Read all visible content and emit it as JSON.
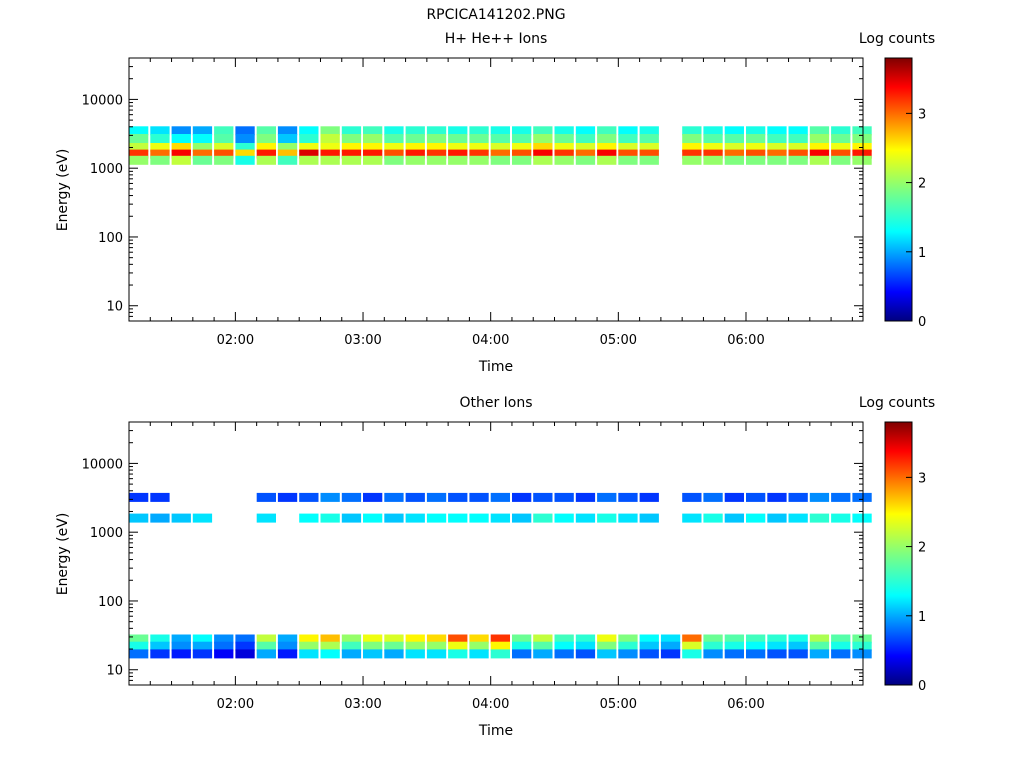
{
  "file_title": "RPCICA141202.PNG",
  "chart_data": [
    {
      "type": "heatmap",
      "title": "H+ He++ Ions",
      "xlabel": "Time",
      "ylabel": "Energy (eV)",
      "colorbar_label": "Log counts",
      "xlim": [
        "01:10",
        "06:55"
      ],
      "ylim": [
        6,
        40000
      ],
      "yscale": "log",
      "zlim": [
        0,
        3.8
      ],
      "x_ticks": [
        "02:00",
        "03:00",
        "04:00",
        "05:00",
        "06:00"
      ],
      "y_ticks": [
        "10",
        "100",
        "1000",
        "10000"
      ],
      "colorbar_ticks": [
        "0",
        "1",
        "2",
        "3"
      ],
      "colormap": [
        "#00007f",
        "#0000ff",
        "#007fff",
        "#00ffff",
        "#7fff7f",
        "#ffff00",
        "#ff7f00",
        "#ff0000",
        "#7f0000"
      ],
      "time_bins": [
        "01:10",
        "01:20",
        "01:30",
        "01:40",
        "01:50",
        "02:00",
        "02:10",
        "02:20",
        "02:30",
        "02:40",
        "02:50",
        "03:00",
        "03:10",
        "03:20",
        "03:30",
        "03:40",
        "03:50",
        "04:00",
        "04:10",
        "04:20",
        "04:30",
        "04:40",
        "04:50",
        "05:00",
        "05:10",
        "05:20",
        "05:30",
        "05:40",
        "05:50",
        "06:00",
        "06:10",
        "06:20",
        "06:30",
        "06:40",
        "06:50"
      ],
      "energy_bands": [
        {
          "energy_ev": 3500,
          "log_counts": [
            1.3,
            1.2,
            0.9,
            1.0,
            1.6,
            0.8,
            1.7,
            0.9,
            1.3,
            1.9,
            1.5,
            1.6,
            1.4,
            1.5,
            1.5,
            1.4,
            1.5,
            1.4,
            1.4,
            1.6,
            1.4,
            1.3,
            1.6,
            1.3,
            1.4,
            0,
            1.5,
            1.4,
            1.3,
            1.4,
            1.3,
            1.3,
            1.7,
            1.5,
            1.6
          ]
        },
        {
          "energy_ev": 2700,
          "log_counts": [
            1.8,
            1.5,
            1.3,
            1.3,
            1.7,
            0.9,
            1.9,
            1.1,
            1.5,
            2.2,
            1.9,
            2.0,
            1.7,
            1.8,
            1.9,
            1.8,
            1.8,
            1.7,
            1.7,
            2.0,
            1.8,
            1.6,
            1.9,
            1.6,
            1.7,
            0,
            1.9,
            1.7,
            1.7,
            1.8,
            1.6,
            1.6,
            2.0,
            1.8,
            1.9
          ]
        },
        {
          "energy_ev": 2000,
          "log_counts": [
            2.2,
            2.4,
            2.6,
            2.0,
            2.3,
            1.5,
            2.5,
            2.0,
            2.4,
            2.4,
            2.5,
            2.5,
            2.4,
            2.5,
            2.5,
            2.4,
            2.4,
            2.3,
            2.4,
            2.6,
            2.4,
            2.3,
            2.5,
            2.3,
            2.3,
            0,
            2.5,
            2.4,
            2.3,
            2.4,
            2.3,
            2.3,
            2.5,
            2.4,
            2.5
          ]
        },
        {
          "energy_ev": 1600,
          "log_counts": [
            3.2,
            3.0,
            3.4,
            3.0,
            3.1,
            2.6,
            3.3,
            2.7,
            3.5,
            3.3,
            3.3,
            3.3,
            3.1,
            3.3,
            3.2,
            3.3,
            3.2,
            3.0,
            3.1,
            3.4,
            3.2,
            3.0,
            3.4,
            3.1,
            3.1,
            0,
            3.2,
            3.2,
            3.0,
            3.1,
            3.0,
            3.1,
            3.4,
            3.1,
            3.3
          ]
        },
        {
          "energy_ev": 1300,
          "log_counts": [
            2.0,
            1.9,
            2.2,
            1.8,
            1.9,
            1.4,
            2.1,
            1.6,
            2.1,
            2.1,
            2.1,
            2.1,
            1.9,
            2.0,
            2.0,
            2.0,
            2.0,
            1.9,
            1.9,
            2.1,
            2.0,
            1.9,
            2.1,
            1.9,
            1.9,
            0,
            2.0,
            2.0,
            1.9,
            1.9,
            1.9,
            1.9,
            2.1,
            1.9,
            2.0
          ]
        }
      ]
    },
    {
      "type": "heatmap",
      "title": "Other Ions",
      "xlabel": "Time",
      "ylabel": "Energy (eV)",
      "colorbar_label": "Log counts",
      "xlim": [
        "01:10",
        "06:55"
      ],
      "ylim": [
        6,
        40000
      ],
      "yscale": "log",
      "zlim": [
        0,
        3.8
      ],
      "x_ticks": [
        "02:00",
        "03:00",
        "04:00",
        "05:00",
        "06:00"
      ],
      "y_ticks": [
        "10",
        "100",
        "1000",
        "10000"
      ],
      "colorbar_ticks": [
        "0",
        "1",
        "2",
        "3"
      ],
      "colormap": [
        "#00007f",
        "#0000ff",
        "#007fff",
        "#00ffff",
        "#7fff7f",
        "#ffff00",
        "#ff7f00",
        "#ff0000",
        "#7f0000"
      ],
      "time_bins": [
        "01:10",
        "01:20",
        "01:30",
        "01:40",
        "01:50",
        "02:00",
        "02:10",
        "02:20",
        "02:30",
        "02:40",
        "02:50",
        "03:00",
        "03:10",
        "03:20",
        "03:30",
        "03:40",
        "03:50",
        "04:00",
        "04:10",
        "04:20",
        "04:30",
        "04:40",
        "04:50",
        "05:00",
        "05:10",
        "05:20",
        "05:30",
        "05:40",
        "05:50",
        "06:00",
        "06:10",
        "06:20",
        "06:30",
        "06:40",
        "06:50"
      ],
      "energy_bands": [
        {
          "energy_ev": 3200,
          "log_counts": [
            0.6,
            0.6,
            0,
            0,
            0,
            0,
            0.7,
            0.6,
            0.7,
            0.9,
            0.8,
            0.6,
            0.8,
            0.7,
            0.8,
            0.7,
            0.7,
            0.8,
            0.6,
            0.7,
            0.7,
            0.6,
            0.8,
            0.7,
            0.6,
            0,
            0.7,
            0.8,
            0.6,
            0.7,
            0.6,
            0.7,
            0.9,
            0.8,
            0.8
          ]
        },
        {
          "energy_ev": 1600,
          "log_counts": [
            1.1,
            1.0,
            1.1,
            1.2,
            0,
            0,
            1.2,
            0,
            1.3,
            1.4,
            1.1,
            1.3,
            1.1,
            1.2,
            1.3,
            1.3,
            1.3,
            1.2,
            1.1,
            1.5,
            1.3,
            1.2,
            1.4,
            1.2,
            1.1,
            0,
            1.2,
            1.4,
            1.1,
            1.3,
            1.1,
            1.2,
            1.5,
            1.4,
            1.3
          ]
        },
        {
          "energy_ev": 28,
          "log_counts": [
            1.8,
            1.4,
            1.0,
            1.3,
            0.9,
            0.8,
            2.2,
            1.0,
            2.5,
            2.7,
            2.0,
            2.4,
            2.3,
            2.5,
            2.6,
            3.1,
            2.6,
            3.2,
            1.8,
            2.2,
            1.6,
            1.5,
            2.4,
            1.9,
            1.3,
            1.2,
            3.0,
            1.8,
            1.7,
            1.6,
            1.5,
            1.4,
            2.1,
            1.7,
            1.8
          ]
        },
        {
          "energy_ev": 22,
          "log_counts": [
            1.4,
            1.1,
            0.9,
            1.0,
            0.8,
            0.6,
            1.7,
            0.9,
            2.0,
            2.1,
            1.6,
            1.9,
            1.8,
            2.0,
            2.0,
            2.4,
            2.0,
            2.5,
            1.4,
            1.7,
            1.3,
            1.2,
            1.9,
            1.5,
            1.1,
            1.0,
            2.3,
            1.5,
            1.4,
            1.3,
            1.2,
            1.1,
            1.7,
            1.4,
            1.5
          ]
        },
        {
          "energy_ev": 17,
          "log_counts": [
            0.8,
            0.6,
            0.5,
            0.6,
            0.4,
            0.3,
            1.0,
            0.5,
            1.2,
            1.3,
            1.0,
            1.1,
            1.0,
            1.2,
            1.2,
            1.4,
            1.2,
            1.5,
            0.8,
            1.0,
            0.8,
            0.7,
            1.1,
            0.9,
            0.7,
            0.6,
            1.4,
            0.9,
            0.8,
            0.8,
            0.7,
            0.7,
            1.0,
            0.8,
            0.9
          ]
        }
      ]
    }
  ]
}
